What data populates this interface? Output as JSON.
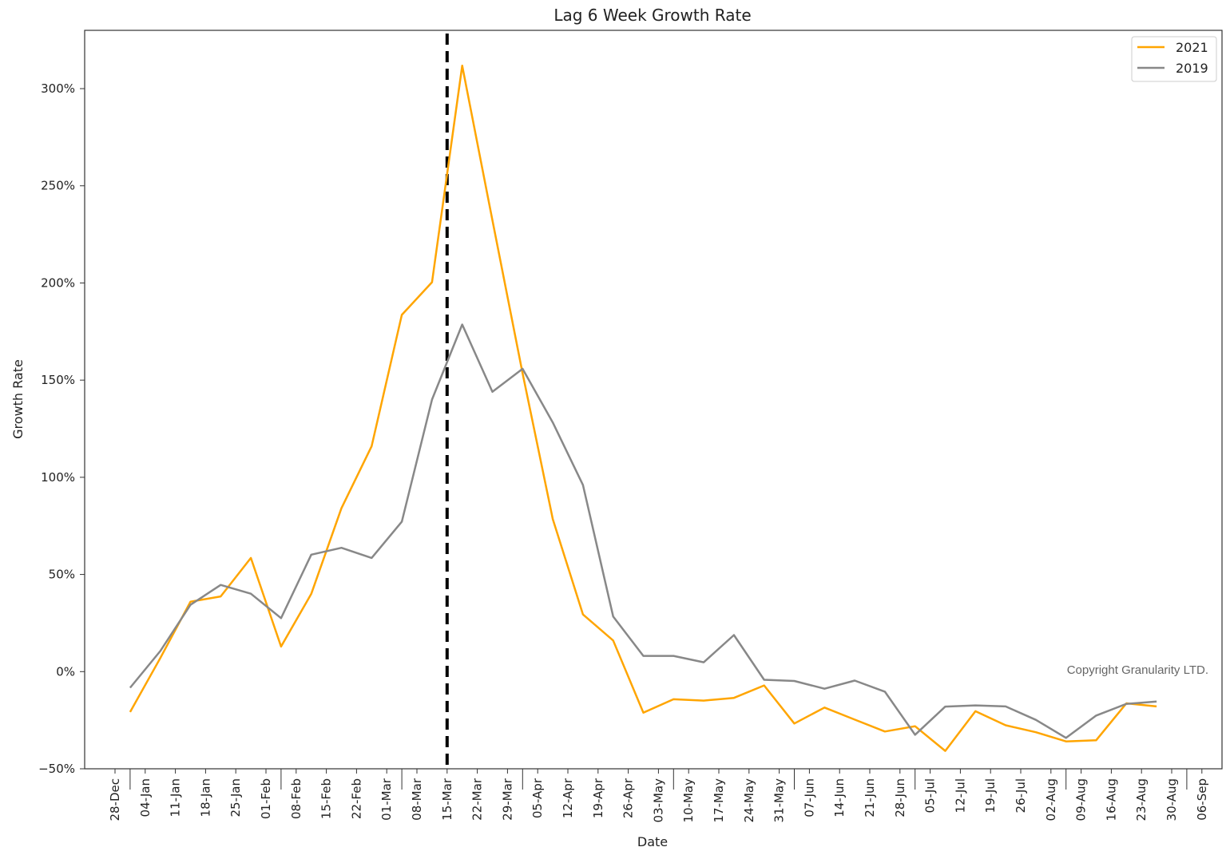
{
  "chart_data": {
    "type": "line",
    "title": "Lag 6 Week Growth Rate",
    "xlabel": "Date",
    "ylabel": "Growth Rate",
    "ylim": [
      -50,
      330
    ],
    "yticks": [
      -50,
      0,
      50,
      100,
      150,
      200,
      250,
      300
    ],
    "ytick_labels": [
      "−50%",
      "0%",
      "50%",
      "100%",
      "150%",
      "200%",
      "250%",
      "300%"
    ],
    "x_categories": [
      "28-Dec",
      "04-Jan",
      "11-Jan",
      "18-Jan",
      "25-Jan",
      "01-Feb",
      "08-Feb",
      "15-Feb",
      "22-Feb",
      "01-Mar",
      "08-Mar",
      "15-Mar",
      "22-Mar",
      "29-Mar",
      "05-Apr",
      "12-Apr",
      "19-Apr",
      "26-Apr",
      "03-May",
      "10-May",
      "17-May",
      "24-May",
      "31-May",
      "07-Jun",
      "14-Jun",
      "21-Jun",
      "28-Jun",
      "05-Jul",
      "12-Jul",
      "19-Jul",
      "26-Jul",
      "02-Aug",
      "09-Aug",
      "16-Aug",
      "23-Aug",
      "30-Aug",
      "06-Sep"
    ],
    "series": [
      {
        "name": "2021",
        "color": "#FFA500",
        "values": [
          -20.8,
          7.0,
          36.0,
          38.7,
          58.5,
          12.9,
          40.0,
          84.1,
          116.0,
          183.6,
          200.4,
          311.8,
          232.3,
          153.5,
          78.5,
          29.4,
          16.0,
          -21.1,
          -14.2,
          -14.9,
          -13.5,
          -7.1,
          -26.7,
          -18.5,
          -24.7,
          -30.8,
          -28.1,
          -40.8,
          -20.4,
          -27.6,
          -31.2,
          -35.9,
          -35.3,
          -16.3,
          -17.9
        ]
      },
      {
        "name": "2019",
        "color": "#888888",
        "values": [
          -8.3,
          10.6,
          34.4,
          44.6,
          40.1,
          27.5,
          60.2,
          63.7,
          58.5,
          77.2,
          140.0,
          178.6,
          144.0,
          155.8,
          128.2,
          96.0,
          28.4,
          8.1,
          8.1,
          4.8,
          18.8,
          -4.2,
          -4.8,
          -8.8,
          -4.6,
          -10.3,
          -32.5,
          -18.0,
          -17.4,
          -17.9,
          -24.8,
          -34.1,
          -22.6,
          -16.6,
          -15.4
        ]
      }
    ],
    "series_dates": [
      "04-Jan",
      "11-Jan",
      "18-Jan",
      "25-Jan",
      "01-Feb",
      "08-Feb",
      "15-Feb",
      "22-Feb",
      "01-Mar",
      "08-Mar",
      "15-Mar",
      "22-Mar",
      "29-Mar",
      "05-Apr",
      "12-Apr",
      "19-Apr",
      "26-Apr",
      "03-May",
      "10-May",
      "17-May",
      "24-May",
      "31-May",
      "07-Jun",
      "14-Jun",
      "21-Jun",
      "28-Jun",
      "05-Jul",
      "12-Jul",
      "19-Jul",
      "26-Jul",
      "02-Aug",
      "09-Aug",
      "16-Aug",
      "23-Aug",
      "30-Aug"
    ],
    "series_x_offset": -0.5,
    "month_boundaries_after_index": [
      0,
      5,
      9,
      13,
      18,
      22,
      26,
      31,
      35
    ],
    "reference_line": {
      "x": "15-Mar",
      "style": "dashed",
      "color": "#000000"
    },
    "legend": {
      "position": "top-right"
    },
    "grid": false,
    "copyright": "Copyright Granularity LTD."
  }
}
